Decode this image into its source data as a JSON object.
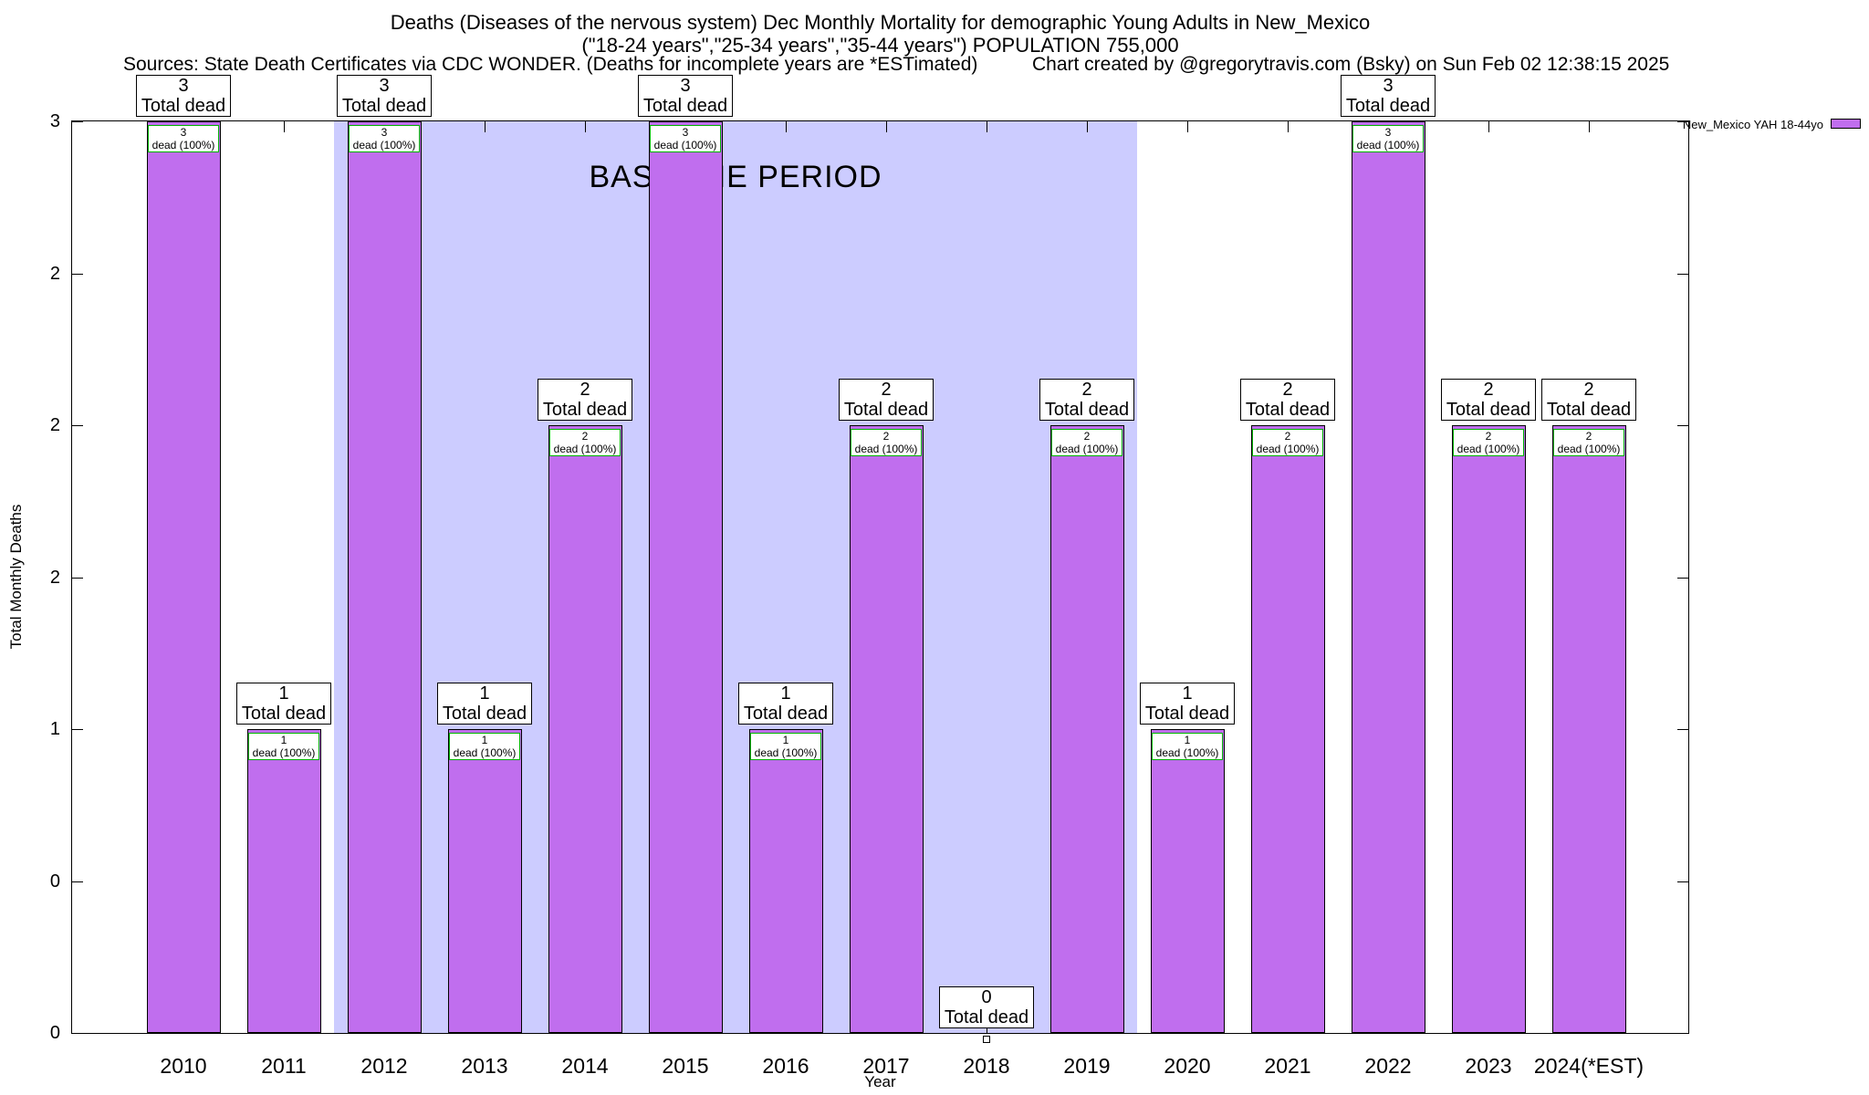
{
  "titles": {
    "line1": "Deaths (Diseases of the nervous system) Dec Monthly Mortality for demographic Young Adults in New_Mexico",
    "line2": "(\"18-24 years\",\"25-34 years\",\"35-44 years\") POPULATION 755,000",
    "sources": "Sources: State Death Certificates via CDC WONDER. (Deaths for incomplete years are *ESTimated)",
    "credit": "Chart created by @gregorytravis.com (Bsky) on Sun Feb 02 12:38:15 2025"
  },
  "chart_data": {
    "type": "bar",
    "title": "Deaths (Diseases of the nervous system) Dec Monthly Mortality for demographic Young Adults in New_Mexico",
    "subtitle": "(\"18-24 years\",\"25-34 years\",\"35-44 years\") POPULATION 755,000",
    "categories": [
      "2010",
      "2011",
      "2012",
      "2013",
      "2014",
      "2015",
      "2016",
      "2017",
      "2018",
      "2019",
      "2020",
      "2021",
      "2022",
      "2023",
      "2024(*EST)"
    ],
    "values": [
      3,
      1,
      3,
      1,
      2,
      3,
      1,
      2,
      0,
      2,
      1,
      2,
      3,
      2,
      2
    ],
    "total_label": "Total dead",
    "inner_label": "dead (100%)",
    "xlabel": "Year",
    "ylabel": "Total Monthly Deaths",
    "ylim": [
      0,
      3
    ],
    "ytick_values": [
      0,
      0.5,
      1,
      1.5,
      2,
      2.5,
      3
    ],
    "ytick_labels": [
      "0",
      "0",
      "1",
      "2",
      "2",
      "2",
      "3"
    ],
    "grid": false,
    "legend": {
      "label": "New_Mexico YAH 18-44yo",
      "position": "top-right"
    },
    "baseline": {
      "label": "BASELINE PERIOD",
      "from": "2012",
      "to": "2019"
    },
    "colors": {
      "bar": "#c06eee",
      "baseline": "#ccccff",
      "inner_box_border": "#00b400",
      "box_bg": "#ffffff"
    }
  }
}
